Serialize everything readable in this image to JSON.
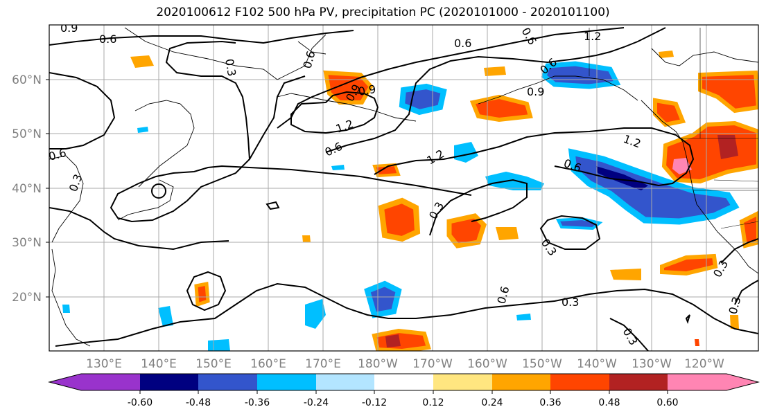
{
  "title": "2020100612 F102 500 hPa PV, precipitation PC (2020101000 - 2020101100)",
  "lat_ticks": [
    "60°N",
    "50°N",
    "40°N",
    "30°N",
    "20°N"
  ],
  "lon_ticks": [
    "130°E",
    "140°E",
    "150°E",
    "160°E",
    "170°E",
    "180°W",
    "170°W",
    "160°W",
    "150°W",
    "140°W",
    "130°W",
    "120°W"
  ],
  "colorbar": {
    "colors": [
      "#9933cc",
      "#000080",
      "#3355cc",
      "#00bfff",
      "#b3e5ff",
      "#ffffff",
      "#ffe680",
      "#ffa500",
      "#ff4500",
      "#b22222",
      "#ff85b3",
      "#ff85b3"
    ],
    "labels": [
      "-0.60",
      "-0.48",
      "-0.36",
      "-0.24",
      "-0.12",
      "0.12",
      "0.24",
      "0.36",
      "0.48",
      "0.60"
    ]
  },
  "contour_labels": [
    "0.9",
    "0.6",
    "0.3",
    "0.6",
    "0.9",
    "0.6",
    "1.2",
    "0.6",
    "0.9",
    "0.6",
    "0.9",
    "1.2",
    "0.6",
    "1.2",
    "0.6",
    "1.2",
    "0.3",
    "0.3",
    "0.6",
    "0.3",
    "0.3",
    "0.3",
    "0.3",
    "0.3",
    "0.6"
  ]
}
